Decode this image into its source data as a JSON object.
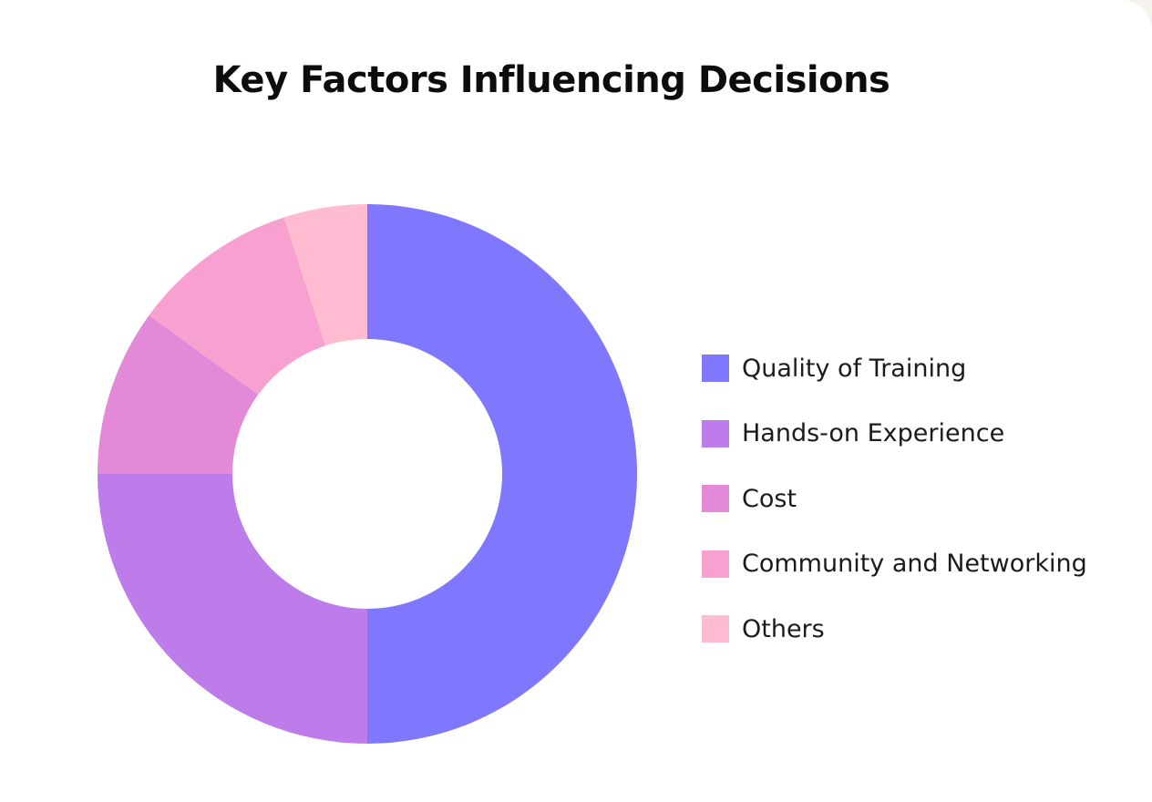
{
  "chart_data": {
    "type": "pie",
    "title": "Key Factors Influencing Decisions",
    "categories": [
      "Quality of Training",
      "Hands-on Experience",
      "Cost",
      "Community and Networking",
      "Others"
    ],
    "values": [
      50,
      25,
      10,
      10,
      5
    ],
    "colors": [
      "#7f78fe",
      "#be7bea",
      "#e289d8",
      "#f8a1d1",
      "#ffbcd0"
    ],
    "donut": true,
    "legend_position": "right"
  }
}
